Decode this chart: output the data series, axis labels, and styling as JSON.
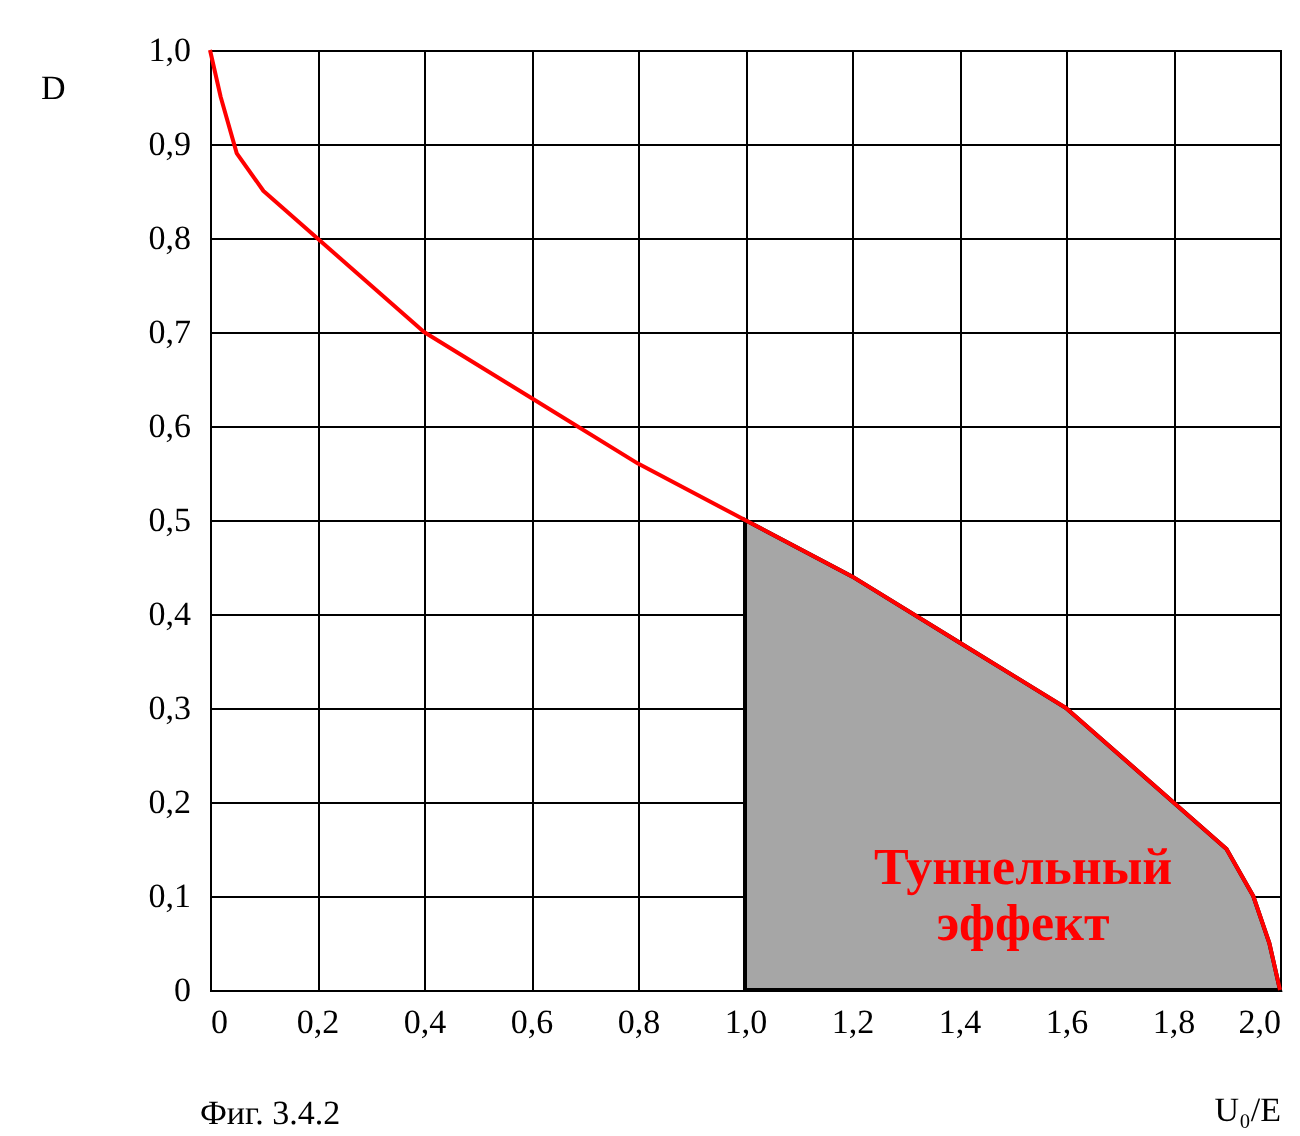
{
  "chart_data": {
    "type": "line",
    "xlabel": "U₀/E",
    "ylabel": "D",
    "series": [
      {
        "type": "area",
        "color": "#a6a6a6",
        "x": [
          1.0,
          1.2,
          1.4,
          1.6,
          1.8,
          1.9,
          1.95,
          1.98,
          2.0
        ],
        "values": [
          0.5,
          0.44,
          0.37,
          0.3,
          0.2,
          0.15,
          0.1,
          0.05,
          0
        ]
      },
      {
        "color": "#ff0000",
        "x": [
          0,
          0.02,
          0.05,
          0.1,
          0.2,
          0.4,
          0.6,
          0.8,
          1.0,
          1.2,
          1.4,
          1.6,
          1.8,
          1.9,
          1.95,
          1.98,
          2.0
        ],
        "values": [
          1.0,
          0.95,
          0.89,
          0.85,
          0.8,
          0.7,
          0.63,
          0.56,
          0.5,
          0.44,
          0.37,
          0.3,
          0.2,
          0.15,
          0.1,
          0.05,
          0
        ]
      }
    ],
    "xlim": [
      0,
      2.0
    ],
    "ylim": [
      0,
      1.0
    ],
    "xticks": [
      0,
      {
        "value": 0.2,
        "label": "0,2"
      },
      {
        "value": 0.4,
        "label": "0,4"
      },
      {
        "value": 0.6,
        "label": "0,6"
      },
      {
        "value": 0.8,
        "label": "0,8"
      },
      {
        "value": 1.0,
        "label": "1,0"
      },
      {
        "value": 1.2,
        "label": "1,2"
      },
      {
        "value": 1.4,
        "label": "1,4"
      },
      {
        "value": 1.6,
        "label": "1,6"
      },
      {
        "value": 1.8,
        "label": "1,8"
      },
      {
        "value": 2.0,
        "label": "2,0"
      }
    ],
    "yticks": [
      0,
      {
        "value": 0.1,
        "label": "0,1"
      },
      {
        "value": 0.2,
        "label": "0,2"
      },
      {
        "value": 0.3,
        "label": "0,3"
      },
      {
        "value": 0.4,
        "label": "0,4"
      },
      {
        "value": 0.5,
        "label": "0,5"
      },
      {
        "value": 0.6,
        "label": "0,6"
      },
      {
        "value": 0.7,
        "label": "0,7"
      },
      {
        "value": 0.8,
        "label": "0,8"
      },
      {
        "value": 0.9,
        "label": "0,9"
      },
      {
        "value": 1.0,
        "label": "1,0"
      }
    ],
    "grid": true,
    "annotations": [
      "Туннельный эффект",
      "Фиг. 3.4.2"
    ]
  }
}
